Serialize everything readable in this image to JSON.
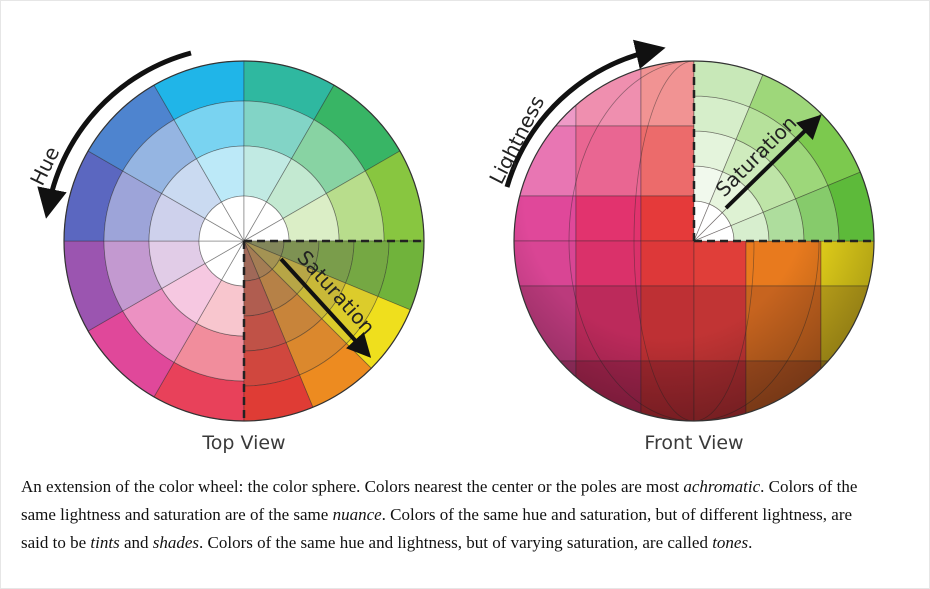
{
  "diagram": {
    "top_view": {
      "label": "Top View",
      "hue_label": "Hue",
      "saturation_label": "Saturation"
    },
    "front_view": {
      "label": "Front View",
      "lightness_label": "Lightness",
      "saturation_label": "Saturation"
    }
  },
  "caption": {
    "parts": [
      "An extension of the color wheel: the color sphere. Colors nearest the center or the poles are most ",
      "achromatic",
      ". Colors of the same lightness and saturation are of the same ",
      "nuance",
      ". Colors of the same hue and saturation, but of different lightness, are said to be ",
      "tints",
      " and ",
      "shades",
      ". Colors of the same hue and lightness, but of varying saturation, are called ",
      "tones",
      "."
    ]
  }
}
